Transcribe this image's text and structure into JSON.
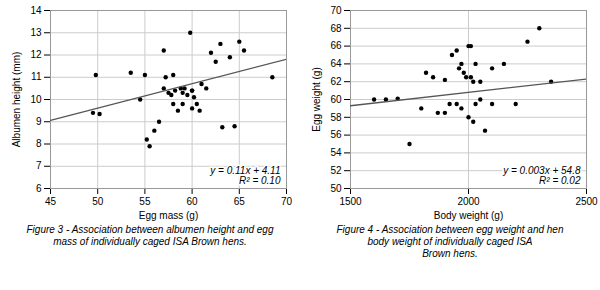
{
  "chart_data": [
    {
      "type": "scatter",
      "xlabel": "Egg mass (g)",
      "ylabel": "Albumen height (mm)",
      "xlim": [
        45,
        70
      ],
      "ylim": [
        6,
        14
      ],
      "xticks": [
        45,
        50,
        55,
        60,
        65,
        70
      ],
      "yticks": [
        6,
        7,
        8,
        9,
        10,
        11,
        12,
        13,
        14
      ],
      "grid": true,
      "annotations": [
        "y = 0.11x + 4.11",
        "R² = 0.10"
      ],
      "caption": "Figure 3 - Association between albumen height and egg\nmass of individually caged ISA Brown hens.",
      "series": [
        {
          "type": "scatter",
          "color": "#000000",
          "x": [
            49.5,
            49.8,
            50.2,
            53.5,
            54.5,
            55.0,
            55.2,
            55.5,
            56.0,
            56.5,
            57.0,
            57.0,
            57.2,
            57.5,
            57.8,
            58.0,
            58.0,
            58.2,
            58.5,
            58.8,
            59.0,
            59.0,
            59.2,
            59.5,
            59.8,
            60.0,
            60.0,
            60.0,
            60.2,
            60.5,
            60.8,
            61.0,
            61.5,
            62.0,
            62.5,
            63.0,
            63.2,
            64.0,
            64.5,
            65.0,
            65.5,
            68.5
          ],
          "values": [
            9.4,
            11.1,
            9.35,
            11.2,
            10.0,
            11.1,
            8.2,
            7.9,
            8.6,
            9.0,
            12.2,
            10.5,
            11.0,
            10.3,
            10.2,
            9.8,
            11.1,
            10.4,
            9.5,
            10.5,
            9.8,
            10.3,
            10.5,
            10.2,
            13.0,
            10.4,
            10.4,
            9.6,
            10.1,
            9.8,
            9.5,
            10.7,
            10.5,
            12.1,
            11.7,
            12.5,
            8.75,
            11.9,
            8.8,
            12.6,
            12.2,
            11.0
          ]
        },
        {
          "type": "line",
          "color": "#555555",
          "x": [
            45,
            70
          ],
          "values": [
            9.06,
            11.81
          ]
        }
      ]
    },
    {
      "type": "scatter",
      "xlabel": "Body weight (g)",
      "ylabel": "Egg weight (g)",
      "xlim": [
        1500,
        2500
      ],
      "ylim": [
        50,
        70
      ],
      "xticks": [
        1500,
        2000,
        2500
      ],
      "yticks": [
        50,
        52,
        54,
        56,
        58,
        60,
        62,
        64,
        66,
        68,
        70
      ],
      "grid": true,
      "annotations": [
        "y = 0.003x + 54.8",
        "R² = 0.02"
      ],
      "caption": "Figure 4 - Association between egg weight and hen\nbody weight of individually caged ISA\nBrown hens.",
      "series": [
        {
          "type": "scatter",
          "color": "#000000",
          "x": [
            1600,
            1650,
            1700,
            1750,
            1800,
            1820,
            1850,
            1870,
            1900,
            1900,
            1920,
            1930,
            1950,
            1950,
            1960,
            1970,
            1970,
            1980,
            1990,
            2000,
            2000,
            2010,
            2010,
            2020,
            2020,
            2030,
            2030,
            2050,
            2050,
            2070,
            2100,
            2100,
            2150,
            2200,
            2250,
            2300,
            2350
          ],
          "values": [
            60.0,
            60.0,
            60.1,
            55.0,
            59.0,
            63.0,
            62.5,
            58.5,
            62.2,
            58.5,
            59.5,
            65.0,
            65.5,
            59.5,
            63.5,
            64.0,
            59.0,
            63.0,
            62.5,
            66.0,
            58.0,
            66.0,
            62.5,
            62.0,
            57.5,
            64.0,
            59.5,
            62.0,
            60.0,
            56.5,
            63.5,
            59.5,
            64.0,
            59.5,
            66.5,
            68.0,
            62.0
          ]
        },
        {
          "type": "line",
          "color": "#555555",
          "x": [
            1500,
            2500
          ],
          "values": [
            59.3,
            62.3
          ]
        }
      ]
    }
  ]
}
